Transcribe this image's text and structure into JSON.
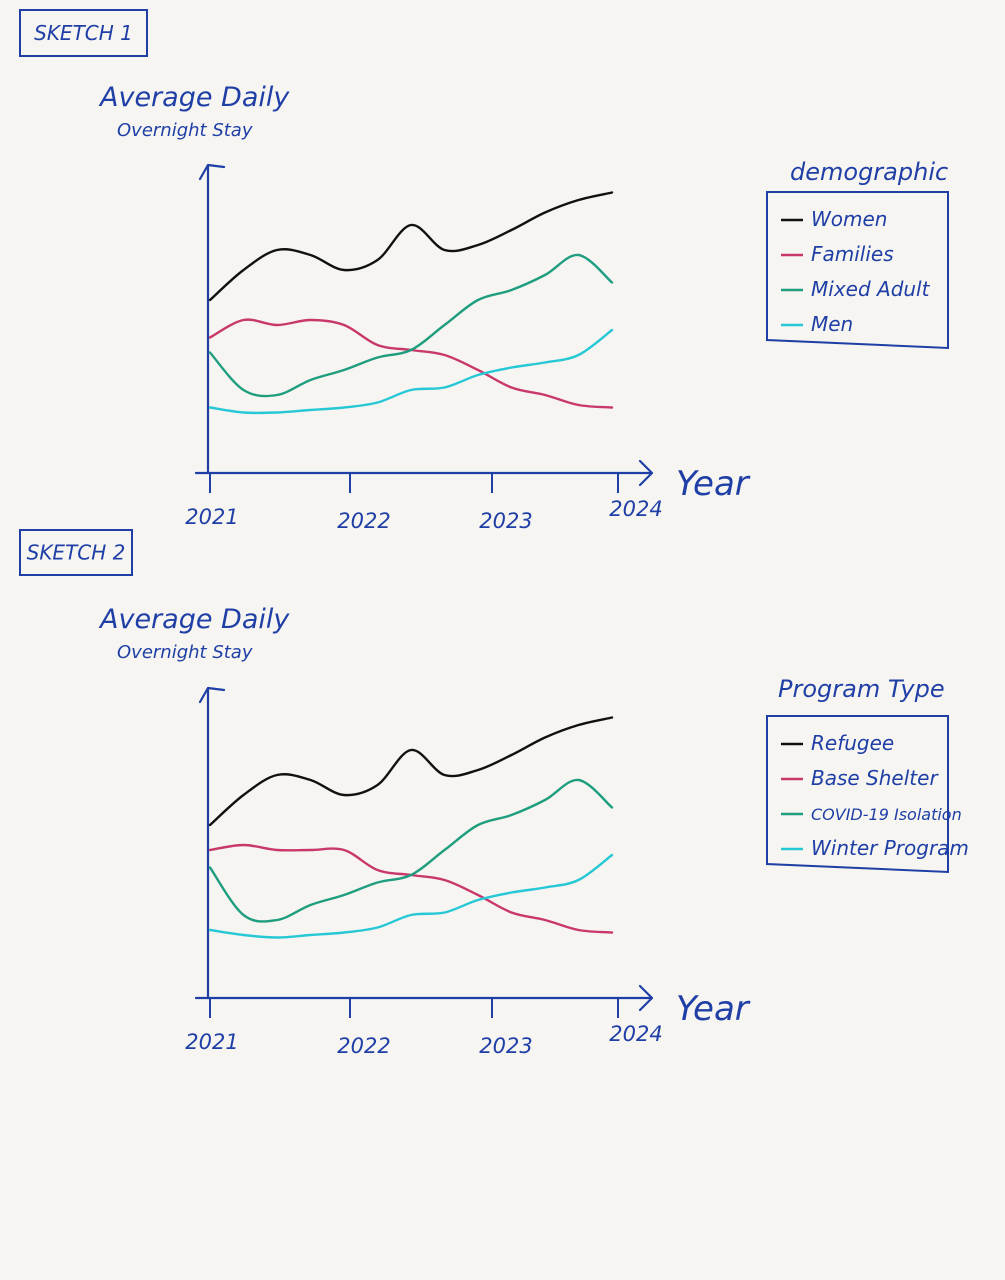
{
  "colors": {
    "ink": "#1f3fa6",
    "paper": "#f6f5f1",
    "series": [
      "#111111",
      "#c9386a",
      "#1f9e7f",
      "#27c8d6"
    ]
  },
  "chart_data": [
    {
      "type": "line",
      "sketch_label": "SKETCH 1",
      "ylabel_line1": "Average Daily",
      "ylabel_line2": "Overnight Stay",
      "xlabel": "Year",
      "ticks": [
        "2021",
        "2022",
        "2023",
        "2024"
      ],
      "legend_title": "demographic",
      "legend_position": "right",
      "grid": false,
      "xlim": [
        2021,
        2024
      ],
      "ylim": [
        0,
        100
      ],
      "x": [
        2021.0,
        2021.25,
        2021.5,
        2021.75,
        2022.0,
        2022.25,
        2022.5,
        2022.75,
        2023.0,
        2023.25,
        2023.5,
        2023.75,
        2024.0
      ],
      "series": [
        {
          "name": "Women",
          "values": [
            60,
            72,
            80,
            78,
            72,
            76,
            90,
            80,
            82,
            88,
            95,
            100,
            103
          ]
        },
        {
          "name": "Families",
          "values": [
            45,
            52,
            50,
            52,
            50,
            42,
            40,
            38,
            32,
            25,
            22,
            18,
            17
          ]
        },
        {
          "name": "Mixed Adult",
          "values": [
            39,
            24,
            22,
            28,
            32,
            37,
            40,
            50,
            60,
            64,
            70,
            78,
            67
          ]
        },
        {
          "name": "Men",
          "values": [
            17,
            15,
            15,
            16,
            17,
            19,
            24,
            25,
            30,
            33,
            35,
            38,
            48
          ]
        }
      ]
    },
    {
      "type": "line",
      "sketch_label": "SKETCH 2",
      "ylabel_line1": "Average Daily",
      "ylabel_line2": "Overnight Stay",
      "xlabel": "Year",
      "ticks": [
        "2021",
        "2022",
        "2023",
        "2024"
      ],
      "legend_title": "Program Type",
      "legend_position": "right",
      "grid": false,
      "xlim": [
        2021,
        2024
      ],
      "ylim": [
        0,
        100
      ],
      "x": [
        2021.0,
        2021.25,
        2021.5,
        2021.75,
        2022.0,
        2022.25,
        2022.5,
        2022.75,
        2023.0,
        2023.25,
        2023.5,
        2023.75,
        2024.0
      ],
      "series": [
        {
          "name": "Refugee",
          "values": [
            60,
            72,
            80,
            78,
            72,
            76,
            90,
            80,
            82,
            88,
            95,
            100,
            103
          ]
        },
        {
          "name": "Base Shelter",
          "values": [
            50,
            52,
            50,
            50,
            50,
            42,
            40,
            38,
            32,
            25,
            22,
            18,
            17
          ]
        },
        {
          "name": "COVID-19 Isolation",
          "values": [
            43,
            24,
            22,
            28,
            32,
            37,
            40,
            50,
            60,
            64,
            70,
            78,
            67
          ]
        },
        {
          "name": "Winter Program",
          "values": [
            18,
            16,
            15,
            16,
            17,
            19,
            24,
            25,
            30,
            33,
            35,
            38,
            48
          ]
        }
      ]
    }
  ]
}
